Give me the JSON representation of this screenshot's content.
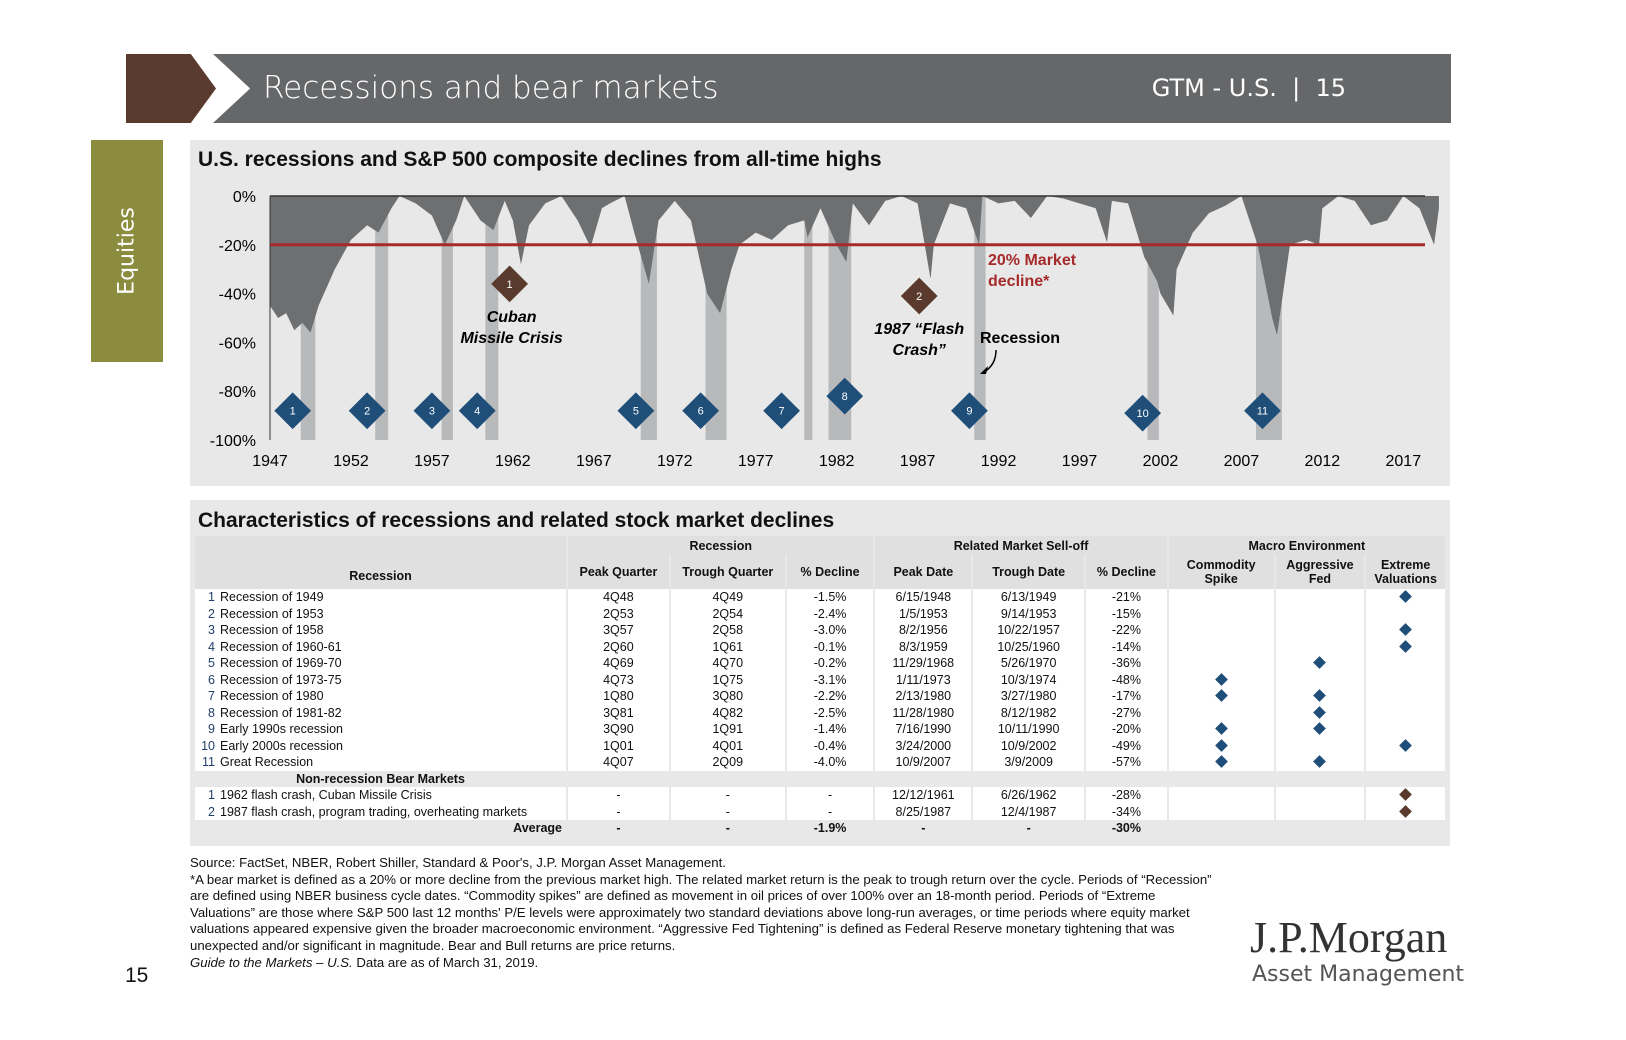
{
  "header": {
    "title": "Recessions and bear markets",
    "region": "GTM - U.S.",
    "separator": "|",
    "page": "15"
  },
  "side_tab": "Equities",
  "chart_title": "U.S. recessions and S&P 500 composite declines from all-time highs",
  "chart_data": {
    "type": "area",
    "title": "U.S. recessions and S&P 500 composite declines from all-time highs",
    "ylim": [
      -100,
      0
    ],
    "y_ticks": [
      "0%",
      "-20%",
      "-40%",
      "-60%",
      "-80%",
      "-100%"
    ],
    "x_ticks": [
      "1947",
      "1952",
      "1957",
      "1962",
      "1967",
      "1972",
      "1977",
      "1982",
      "1987",
      "1992",
      "1997",
      "2002",
      "2007",
      "2012",
      "2017"
    ],
    "x": [
      1947,
      1947.5,
      1948,
      1948.5,
      1949,
      1949.5,
      1950,
      1951,
      1952,
      1953,
      1953.7,
      1954.5,
      1955,
      1956,
      1957,
      1957.8,
      1958.5,
      1959,
      1960,
      1960.8,
      1961.5,
      1962,
      1962.5,
      1963,
      1964,
      1965,
      1966,
      1966.8,
      1967.5,
      1968,
      1968.9,
      1969.5,
      1970.4,
      1971,
      1972,
      1973,
      1974,
      1974.8,
      1975.5,
      1976,
      1977,
      1978,
      1979,
      1980,
      1980.2,
      1981,
      1982,
      1982.6,
      1983,
      1984,
      1985,
      1986,
      1987,
      1987.8,
      1988,
      1989,
      1990,
      1990.8,
      1991,
      1992,
      1993,
      1994,
      1995,
      1996,
      1997,
      1998,
      1998.7,
      1999,
      2000,
      2001,
      2001.8,
      2002,
      2002.8,
      2003,
      2004,
      2005,
      2006,
      2007,
      2008,
      2008.9,
      2009.2,
      2010,
      2011,
      2011.8,
      2012,
      2013,
      2014,
      2015,
      2016,
      2017,
      2018,
      2018.9,
      2019.2
    ],
    "values": [
      -45,
      -50,
      -48,
      -55,
      -52,
      -56,
      -45,
      -30,
      -18,
      -12,
      -15,
      -5,
      0,
      -3,
      -8,
      -20,
      -10,
      0,
      -10,
      -14,
      -2,
      -10,
      -28,
      -12,
      -3,
      0,
      -10,
      -21,
      -5,
      -3,
      0,
      -15,
      -36,
      -10,
      -2,
      -10,
      -40,
      -48,
      -30,
      -20,
      -15,
      -18,
      -12,
      -10,
      -17,
      -5,
      -20,
      -27,
      -3,
      -12,
      -2,
      0,
      -3,
      -34,
      -20,
      -3,
      -5,
      -20,
      0,
      -3,
      -2,
      -9,
      0,
      -1,
      -3,
      -5,
      -19,
      -2,
      -3,
      -25,
      -35,
      -40,
      -49,
      -30,
      -15,
      -7,
      -4,
      0,
      -20,
      -50,
      -57,
      -20,
      -18,
      -20,
      -5,
      0,
      -2,
      -12,
      -10,
      0,
      -5,
      -20,
      -5
    ],
    "threshold": {
      "value": -20,
      "label": "20% Market decline*",
      "color": "#a52a2a"
    },
    "recessions": [
      [
        1948.9,
        1949.8
      ],
      [
        1953.5,
        1954.3
      ],
      [
        1957.6,
        1958.3
      ],
      [
        1960.3,
        1961.1
      ],
      [
        1969.9,
        1970.9
      ],
      [
        1973.9,
        1975.2
      ],
      [
        1980.0,
        1980.5
      ],
      [
        1981.5,
        1982.9
      ],
      [
        1990.5,
        1991.2
      ],
      [
        2001.2,
        2001.9
      ],
      [
        2007.9,
        2009.5
      ]
    ],
    "recession_markers": [
      {
        "n": "1",
        "x": 1948.4,
        "y": -88
      },
      {
        "n": "2",
        "x": 1953,
        "y": -88
      },
      {
        "n": "3",
        "x": 1957,
        "y": -88
      },
      {
        "n": "4",
        "x": 1959.8,
        "y": -88
      },
      {
        "n": "5",
        "x": 1969.6,
        "y": -88
      },
      {
        "n": "6",
        "x": 1973.6,
        "y": -88
      },
      {
        "n": "7",
        "x": 1978.6,
        "y": -88
      },
      {
        "n": "8",
        "x": 1982.5,
        "y": -82
      },
      {
        "n": "9",
        "x": 1990.2,
        "y": -88
      },
      {
        "n": "10",
        "x": 2000.9,
        "y": -89
      },
      {
        "n": "11",
        "x": 2008.3,
        "y": -88
      }
    ],
    "bear_markers": [
      {
        "n": "1",
        "x": 1961.8,
        "y": -36,
        "label1": "Cuban",
        "label2": "Missile Crisis"
      },
      {
        "n": "2",
        "x": 1987.1,
        "y": -41,
        "label1": "1987 “Flash",
        "label2": "Crash”"
      }
    ],
    "recession_label": "Recession",
    "colors": {
      "area": "#6e6f71",
      "recession": "#b8b9bb",
      "marker": "#1f4e79",
      "bear_marker": "#5b3a2e"
    }
  },
  "table": {
    "title": "Characteristics of recessions and related stock market declines",
    "group_headers": [
      "Recession",
      "Related Market Sell-off",
      "Macro Environment"
    ],
    "columns": [
      "Recession",
      "Peak Quarter",
      "Trough Quarter",
      "% Decline",
      "Peak Date",
      "Trough Date",
      "% Decline",
      "Commodity Spike",
      "Aggressive Fed",
      "Extreme Valuations"
    ],
    "rows": [
      {
        "n": "1",
        "name": "Recession of 1949",
        "pq": "4Q48",
        "tq": "4Q49",
        "rd": "-1.5%",
        "pd": "6/15/1948",
        "td": "6/13/1949",
        "md": "-21%",
        "c": false,
        "f": false,
        "e": true
      },
      {
        "n": "2",
        "name": "Recession of 1953",
        "pq": "2Q53",
        "tq": "2Q54",
        "rd": "-2.4%",
        "pd": "1/5/1953",
        "td": "9/14/1953",
        "md": "-15%",
        "c": false,
        "f": false,
        "e": false
      },
      {
        "n": "3",
        "name": "Recession of 1958",
        "pq": "3Q57",
        "tq": "2Q58",
        "rd": "-3.0%",
        "pd": "8/2/1956",
        "td": "10/22/1957",
        "md": "-22%",
        "c": false,
        "f": false,
        "e": true
      },
      {
        "n": "4",
        "name": "Recession of 1960-61",
        "pq": "2Q60",
        "tq": "1Q61",
        "rd": "-0.1%",
        "pd": "8/3/1959",
        "td": "10/25/1960",
        "md": "-14%",
        "c": false,
        "f": false,
        "e": true
      },
      {
        "n": "5",
        "name": "Recession of 1969-70",
        "pq": "4Q69",
        "tq": "4Q70",
        "rd": "-0.2%",
        "pd": "11/29/1968",
        "td": "5/26/1970",
        "md": "-36%",
        "c": false,
        "f": true,
        "e": false
      },
      {
        "n": "6",
        "name": "Recession of 1973-75",
        "pq": "4Q73",
        "tq": "1Q75",
        "rd": "-3.1%",
        "pd": "1/11/1973",
        "td": "10/3/1974",
        "md": "-48%",
        "c": true,
        "f": false,
        "e": false
      },
      {
        "n": "7",
        "name": "Recession of 1980",
        "pq": "1Q80",
        "tq": "3Q80",
        "rd": "-2.2%",
        "pd": "2/13/1980",
        "td": "3/27/1980",
        "md": "-17%",
        "c": true,
        "f": true,
        "e": false
      },
      {
        "n": "8",
        "name": "Recession of 1981-82",
        "pq": "3Q81",
        "tq": "4Q82",
        "rd": "-2.5%",
        "pd": "11/28/1980",
        "td": "8/12/1982",
        "md": "-27%",
        "c": false,
        "f": true,
        "e": false
      },
      {
        "n": "9",
        "name": "Early 1990s recession",
        "pq": "3Q90",
        "tq": "1Q91",
        "rd": "-1.4%",
        "pd": "7/16/1990",
        "td": "10/11/1990",
        "md": "-20%",
        "c": true,
        "f": true,
        "e": false
      },
      {
        "n": "10",
        "name": "Early 2000s recession",
        "pq": "1Q01",
        "tq": "4Q01",
        "rd": "-0.4%",
        "pd": "3/24/2000",
        "td": "10/9/2002",
        "md": "-49%",
        "c": true,
        "f": false,
        "e": true
      },
      {
        "n": "11",
        "name": "Great Recession",
        "pq": "4Q07",
        "tq": "2Q09",
        "rd": "-4.0%",
        "pd": "10/9/2007",
        "td": "3/9/2009",
        "md": "-57%",
        "c": true,
        "f": true,
        "e": false
      }
    ],
    "section": "Non-recession Bear Markets",
    "bear_rows": [
      {
        "n": "1",
        "name": "1962 flash crash, Cuban Missile Crisis",
        "pq": "-",
        "tq": "-",
        "rd": "-",
        "pd": "12/12/1961",
        "td": "6/26/1962",
        "md": "-28%",
        "c": false,
        "f": false,
        "e": true
      },
      {
        "n": "2",
        "name": "1987 flash crash, program trading, overheating markets",
        "pq": "-",
        "tq": "-",
        "rd": "-",
        "pd": "8/25/1987",
        "td": "12/4/1987",
        "md": "-34%",
        "c": false,
        "f": false,
        "e": true
      }
    ],
    "average": {
      "label": "Average",
      "pq": "-",
      "tq": "-",
      "rd": "-1.9%",
      "pd": "-",
      "td": "-",
      "md": "-30%"
    }
  },
  "footer": {
    "source": "Source: FactSet, NBER, Robert Shiller, Standard & Poor's, J.P. Morgan Asset Management.",
    "note": "*A bear market is defined as a 20% or more decline from the previous market high. The related market return is the peak to trough return over the cycle. Periods of “Recession” are defined using NBER business cycle dates. “Commodity spikes” are defined as movement in oil prices of over 100% over an 18-month period. Periods of “Extreme Valuations” are those where S&P 500 last 12 months' P/E levels were approximately two standard deviations above long-run averages, or time periods where equity market valuations appeared expensive given the broader macroeconomic environment. “Aggressive Fed Tightening” is defined as Federal Reserve monetary tightening that was unexpected and/or significant in magnitude. Bear and Bull returns are price returns.",
    "guide": "Guide to the Markets – U.S.",
    "asof": " Data are as of March 31, 2019.",
    "page": "15"
  },
  "logo": {
    "name": "J.P.Morgan",
    "sub": "Asset Management"
  }
}
